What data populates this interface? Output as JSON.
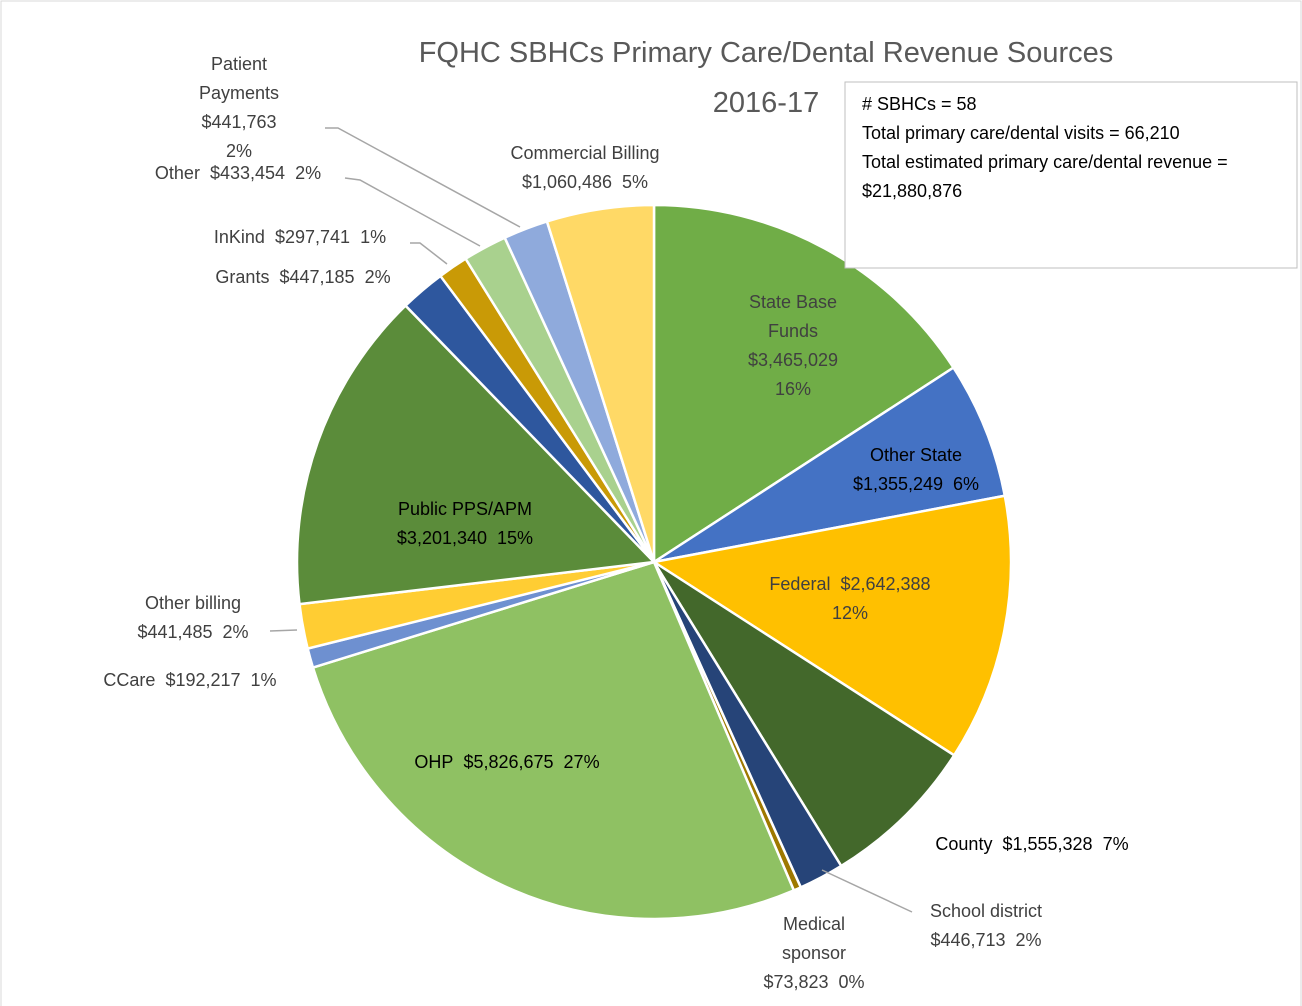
{
  "chart_data": {
    "type": "pie",
    "title": "FQHC SBHCs Primary Care/Dental Revenue Sources",
    "subtitle": "2016-17",
    "annotation": [
      "# SBHCs = 58",
      "Total primary care/dental visits = 66,210",
      "Total estimated primary care/dental revenue = $21,880,876"
    ],
    "categories": [
      "State Base Funds",
      "Other State",
      "Federal",
      "County",
      "School district",
      "Medical sponsor",
      "OHP",
      "CCare",
      "Other billing",
      "Public PPS/APM",
      "Grants",
      "InKind",
      "Other",
      "Patient Payments",
      "Commercial Billing"
    ],
    "values": [
      3465029,
      1355249,
      2642388,
      1555328,
      446713,
      73823,
      5826675,
      192217,
      441485,
      3201340,
      447185,
      297741,
      433454,
      441763,
      1060486
    ],
    "value_labels": [
      "$3,465,029",
      "$1,355,249",
      "$2,642,388",
      "$1,555,328",
      "$446,713",
      "$73,823",
      "$5,826,675",
      "$192,217",
      "$441,485",
      "$3,201,340",
      "$447,185",
      "$297,741",
      "$433,454",
      "$441,763",
      "$1,060,486"
    ],
    "percent_labels": [
      "16%",
      "6%",
      "12%",
      "7%",
      "2%",
      "0%",
      "27%",
      "1%",
      "2%",
      "15%",
      "2%",
      "1%",
      "2%",
      "2%",
      "5%"
    ],
    "colors": [
      "#70ad47",
      "#4472c4",
      "#ffc000",
      "#43682b",
      "#264478",
      "#9e7800",
      "#8fc163",
      "#6e90d0",
      "#ffcd33",
      "#5b8c3a",
      "#2e579e",
      "#c99a06",
      "#a9d18e",
      "#8faadc",
      "#ffd966"
    ]
  }
}
